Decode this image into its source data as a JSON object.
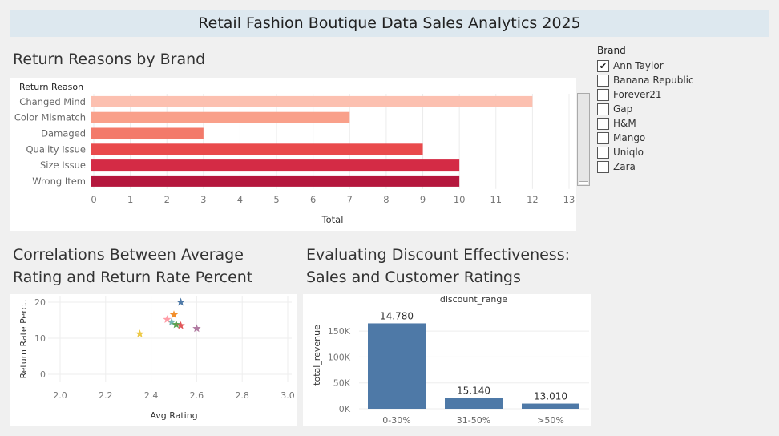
{
  "header": {
    "title": "Retail Fashion Boutique Data Sales Analytics 2025"
  },
  "colors": {
    "bar_blue": "#4e79a7",
    "title_bar_bg": "#dde8ef"
  },
  "sheets": {
    "returns": {
      "title": "Return Reasons by Brand"
    },
    "correlation": {
      "title_line1": "Correlations Between Average",
      "title_line2": "Rating and Return Rate Percent"
    },
    "discount": {
      "title_line1": "Evaluating Discount Effectiveness:",
      "title_line2": "Sales and Customer Ratings"
    }
  },
  "filter": {
    "title": "Brand",
    "items": [
      {
        "label": "Ann Taylor",
        "checked": true
      },
      {
        "label": "Banana Republic",
        "checked": false
      },
      {
        "label": "Forever21",
        "checked": false
      },
      {
        "label": "Gap",
        "checked": false
      },
      {
        "label": "H&M",
        "checked": false
      },
      {
        "label": "Mango",
        "checked": false
      },
      {
        "label": "Uniqlo",
        "checked": false
      },
      {
        "label": "Zara",
        "checked": false
      }
    ]
  },
  "chart_data": [
    {
      "type": "bar",
      "orientation": "horizontal",
      "row_header": "Return Reason",
      "categories": [
        "Changed Mind",
        "Color Mismatch",
        "Damaged",
        "Quality Issue",
        "Size Issue",
        "Wrong Item"
      ],
      "values": [
        12,
        7,
        3,
        9,
        10,
        10
      ],
      "colors": [
        "#fcc0b0",
        "#f9a08a",
        "#f37a6a",
        "#e94a4c",
        "#d42b45",
        "#b5173d"
      ],
      "xlabel": "Total",
      "xlim": [
        0,
        13
      ],
      "xticks": [
        "0",
        "1",
        "2",
        "3",
        "4",
        "5",
        "6",
        "7",
        "8",
        "9",
        "10",
        "11",
        "12",
        "13"
      ]
    },
    {
      "type": "scatter",
      "marker": "star",
      "xlabel": "Avg Rating",
      "ylabel": "Return Rate Perc..",
      "xlim": [
        2.0,
        3.0
      ],
      "ylim": [
        0,
        20
      ],
      "xticks": [
        "2.0",
        "2.2",
        "2.4",
        "2.6",
        "2.8",
        "3.0"
      ],
      "yticks": [
        "0",
        "10",
        "20"
      ],
      "points": [
        {
          "x": 2.53,
          "y": 20.0,
          "color": "#4e79a7"
        },
        {
          "x": 2.5,
          "y": 16.5,
          "color": "#f28e2b"
        },
        {
          "x": 2.47,
          "y": 15.2,
          "color": "#ff9da7"
        },
        {
          "x": 2.49,
          "y": 14.5,
          "color": "#76b7b2"
        },
        {
          "x": 2.51,
          "y": 13.8,
          "color": "#59a14f"
        },
        {
          "x": 2.53,
          "y": 13.5,
          "color": "#e15759"
        },
        {
          "x": 2.6,
          "y": 12.7,
          "color": "#b07aa1"
        },
        {
          "x": 2.35,
          "y": 11.2,
          "color": "#edc948"
        }
      ]
    },
    {
      "type": "bar",
      "header": "discount_range",
      "categories": [
        "0-30%",
        "31-50%",
        ">50%"
      ],
      "values": [
        165000,
        21000,
        10000
      ],
      "data_labels": [
        "14.780",
        "15.140",
        "13.010"
      ],
      "ylabel": "total_revenue",
      "ylim": [
        0,
        175000
      ],
      "yticks": [
        {
          "value": 0,
          "label": "0K"
        },
        {
          "value": 50000,
          "label": "50K"
        },
        {
          "value": 100000,
          "label": "100K"
        },
        {
          "value": 150000,
          "label": "150K"
        }
      ],
      "color": "#4e79a7"
    }
  ]
}
